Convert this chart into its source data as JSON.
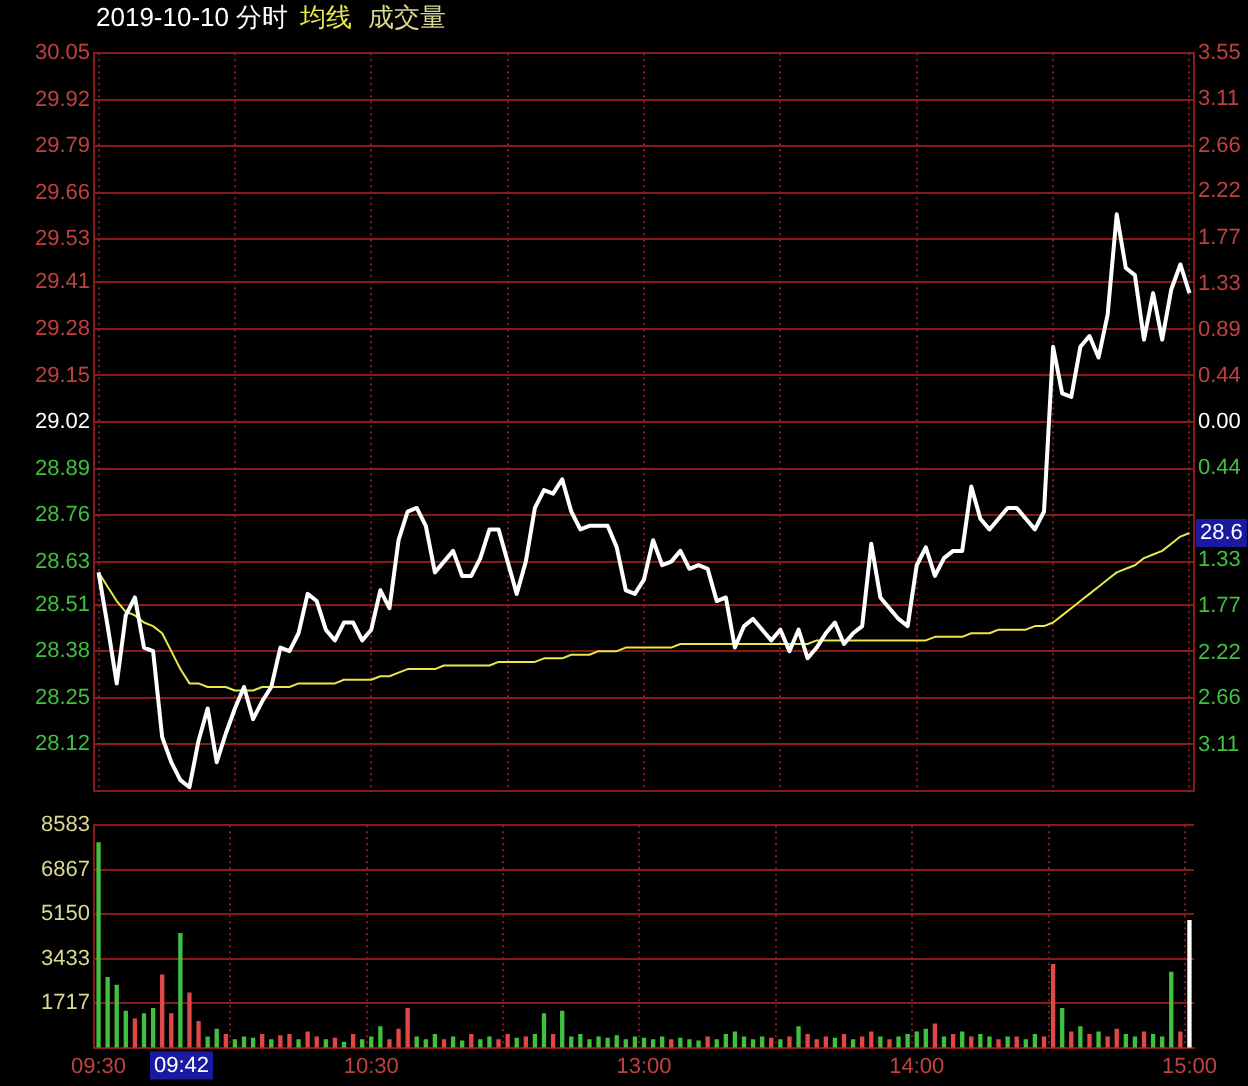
{
  "chart_data": [
    {
      "type": "line",
      "title": "2019-10-10 分时",
      "categories": [
        null,
        null,
        null,
        null,
        null,
        null,
        null,
        null,
        null,
        null,
        null,
        null,
        null,
        null,
        null,
        null,
        null,
        null,
        null,
        null,
        null,
        null,
        null,
        null,
        null,
        null,
        null,
        null,
        null,
        null,
        null,
        null,
        null,
        null,
        null,
        null,
        null,
        null,
        null,
        null,
        null,
        null,
        null,
        null,
        null,
        null,
        null,
        null,
        null,
        null,
        null,
        null,
        null,
        null,
        null,
        null,
        null,
        null,
        null,
        null,
        null,
        null,
        null,
        null,
        null,
        null,
        null,
        null,
        null,
        null,
        null,
        null,
        null,
        null,
        null,
        null,
        null,
        null,
        null,
        null,
        null,
        null,
        null,
        null,
        null,
        null,
        null,
        null,
        null,
        null,
        null,
        null,
        null,
        null,
        null,
        null,
        null,
        null,
        null,
        null,
        null,
        null,
        null,
        null,
        null,
        null,
        null,
        null,
        null,
        null,
        null,
        null,
        null,
        null,
        null,
        null,
        null,
        null,
        null,
        null,
        null
      ],
      "series": [
        {
          "color": "#ffffff",
          "values": [
            28.6,
            28.45,
            28.29,
            28.48,
            28.53,
            28.39,
            28.38,
            28.14,
            28.07,
            28.02,
            28.0,
            28.13,
            28.22,
            28.07,
            28.15,
            28.22,
            28.28,
            28.19,
            28.24,
            28.28,
            28.39,
            28.38,
            28.43,
            28.54,
            28.52,
            28.44,
            28.41,
            28.46,
            28.46,
            28.41,
            28.44,
            28.55,
            28.5,
            28.69,
            28.77,
            28.78,
            28.73,
            28.6,
            28.63,
            28.66,
            28.59,
            28.59,
            28.64,
            28.72,
            28.72,
            28.63,
            28.54,
            28.63,
            28.78,
            28.83,
            28.82,
            28.86,
            28.77,
            28.72,
            28.73,
            28.73,
            28.73,
            28.67,
            28.55,
            28.54,
            28.58,
            28.69,
            28.62,
            28.63,
            28.66,
            28.61,
            28.62,
            28.61,
            28.52,
            28.53,
            28.39,
            28.45,
            28.47,
            28.44,
            28.41,
            28.44,
            28.38,
            28.44,
            28.36,
            28.39,
            28.43,
            28.46,
            28.4,
            28.43,
            28.45,
            28.68,
            28.53,
            28.5,
            28.47,
            28.45,
            28.62,
            28.67,
            28.59,
            28.64,
            28.66,
            28.66,
            28.84,
            28.75,
            28.72,
            28.75,
            28.78,
            28.78,
            28.75,
            28.72,
            28.77,
            29.23,
            29.1,
            29.09,
            29.23,
            29.26,
            29.2,
            29.32,
            29.6,
            29.45,
            29.43,
            29.25,
            29.38,
            29.25,
            29.39,
            29.46,
            29.38
          ]
        },
        {
          "type": "line",
          "name": "均线",
          "color": "#e8e84a",
          "values": [
            28.6,
            28.56,
            28.52,
            28.49,
            28.48,
            28.46,
            28.45,
            28.43,
            28.38,
            28.33,
            28.29,
            28.29,
            28.28,
            28.28,
            28.28,
            28.27,
            28.27,
            28.27,
            28.28,
            28.28,
            28.28,
            28.28,
            28.29,
            28.29,
            28.29,
            28.29,
            28.29,
            28.3,
            28.3,
            28.3,
            28.3,
            28.31,
            28.31,
            28.32,
            28.33,
            28.33,
            28.33,
            28.33,
            28.34,
            28.34,
            28.34,
            28.34,
            28.34,
            28.34,
            28.35,
            28.35,
            28.35,
            28.35,
            28.35,
            28.36,
            28.36,
            28.36,
            28.37,
            28.37,
            28.37,
            28.38,
            28.38,
            28.38,
            28.39,
            28.39,
            28.39,
            28.39,
            28.39,
            28.39,
            28.4,
            28.4,
            28.4,
            28.4,
            28.4,
            28.4,
            28.4,
            28.4,
            28.4,
            28.4,
            28.4,
            28.4,
            28.4,
            28.4,
            28.4,
            28.41,
            28.41,
            28.41,
            28.41,
            28.41,
            28.41,
            28.41,
            28.41,
            28.41,
            28.41,
            28.41,
            28.41,
            28.41,
            28.42,
            28.42,
            28.42,
            28.42,
            28.43,
            28.43,
            28.43,
            28.44,
            28.44,
            28.44,
            28.44,
            28.45,
            28.45,
            28.46,
            28.48,
            28.5,
            28.52,
            28.54,
            28.56,
            28.58,
            28.6,
            28.61,
            28.62,
            28.64,
            28.65,
            28.66,
            28.68,
            28.7,
            28.71
          ]
        }
      ],
      "ylim": [
        27.99,
        30.05
      ],
      "yticks": [
        28.12,
        28.25,
        28.38,
        28.51,
        28.63,
        28.76,
        28.89,
        29.02,
        29.15,
        29.28,
        29.41,
        29.53,
        29.66,
        29.79,
        29.92,
        30.05
      ],
      "y2lim": [
        -3.55,
        3.55
      ],
      "y2ticks": [
        {
          "value": -3.11,
          "label": "3.11"
        },
        {
          "value": -2.66,
          "label": "2.66"
        },
        {
          "value": -2.22,
          "label": "2.22"
        },
        {
          "value": -1.77,
          "label": "1.77"
        },
        {
          "value": -1.33,
          "label": "1.33"
        },
        {
          "value": -0.89,
          "label": null
        },
        {
          "value": -0.44,
          "label": "0.44"
        },
        {
          "value": 0,
          "label": "0.00"
        },
        0.44,
        0.89,
        1.33,
        1.77,
        2.22,
        2.66,
        3.11,
        3.55
      ],
      "annotations": [
        {
          "text": "28.6",
          "y": 28.71
        }
      ],
      "tick_labels": "y",
      "grid": true,
      "legend": "top left",
      "marker": "none",
      "line_style": "solid"
    },
    {
      "type": "bar",
      "categories": [
        "09:30",
        null,
        null,
        null,
        null,
        null,
        null,
        null,
        null,
        null,
        null,
        null,
        null,
        null,
        null,
        null,
        null,
        null,
        null,
        null,
        null,
        null,
        null,
        null,
        null,
        null,
        null,
        null,
        null,
        null,
        "10:30",
        null,
        null,
        null,
        null,
        null,
        null,
        null,
        null,
        null,
        null,
        null,
        null,
        null,
        null,
        null,
        null,
        null,
        null,
        null,
        null,
        null,
        null,
        null,
        null,
        null,
        null,
        null,
        null,
        null,
        "13:00",
        null,
        null,
        null,
        null,
        null,
        null,
        null,
        null,
        null,
        null,
        null,
        null,
        null,
        null,
        null,
        null,
        null,
        null,
        null,
        null,
        null,
        null,
        null,
        null,
        null,
        null,
        null,
        null,
        null,
        "14:00",
        null,
        null,
        null,
        null,
        null,
        null,
        null,
        null,
        null,
        null,
        null,
        null,
        null,
        null,
        null,
        null,
        null,
        null,
        null,
        null,
        null,
        null,
        null,
        null,
        null,
        null,
        null,
        null,
        null,
        "15:00"
      ],
      "series": [
        {
          "name": "成交量",
          "values": [
            7900,
            2700,
            2400,
            1400,
            1100,
            1300,
            1500,
            2800,
            1300,
            4400,
            2100,
            1000,
            400,
            700,
            500,
            300,
            400,
            350,
            500,
            300,
            450,
            500,
            300,
            600,
            400,
            300,
            350,
            200,
            500,
            300,
            400,
            800,
            300,
            700,
            1500,
            400,
            300,
            500,
            300,
            400,
            250,
            500,
            300,
            400,
            300,
            500,
            350,
            400,
            500,
            1300,
            500,
            1400,
            400,
            500,
            300,
            400,
            350,
            450,
            300,
            400,
            350,
            300,
            400,
            300,
            350,
            300,
            250,
            400,
            300,
            500,
            600,
            400,
            300,
            400,
            350,
            300,
            400,
            800,
            500,
            300,
            400,
            350,
            500,
            300,
            400,
            600,
            400,
            300,
            400,
            500,
            600,
            700,
            900,
            400,
            500,
            600,
            400,
            500,
            400,
            300,
            400,
            400,
            300,
            500,
            400,
            3200,
            1500,
            600,
            800,
            500,
            600,
            400,
            700,
            500,
            400,
            600,
            500,
            400,
            2900,
            600,
            4900
          ],
          "colors": [
            "#40c040",
            "#40c040",
            "#40c040",
            "#40c040",
            "#e04848",
            "#40c040",
            "#40c040",
            "#e04848",
            "#e04848",
            "#40c040",
            "#e04848",
            "#e04848",
            "#40c040",
            "#40c040",
            "#e04848",
            "#40c040",
            "#40c040",
            "#40c040",
            "#e04848",
            "#40c040",
            "#e04848",
            "#e04848",
            "#40c040",
            "#e04848",
            "#e04848",
            "#40c040",
            "#e04848",
            "#40c040",
            "#e04848",
            "#40c040",
            "#40c040",
            "#40c040",
            "#e04848",
            "#e04848",
            "#e04848",
            "#40c040",
            "#40c040",
            "#40c040",
            "#e04848",
            "#40c040",
            "#40c040",
            "#e04848",
            "#40c040",
            "#40c040",
            "#e04848",
            "#e04848",
            "#40c040",
            "#e04848",
            "#40c040",
            "#40c040",
            "#e04848",
            "#40c040",
            "#40c040",
            "#40c040",
            "#40c040",
            "#40c040",
            "#40c040",
            "#40c040",
            "#40c040",
            "#40c040",
            "#40c040",
            "#40c040",
            "#40c040",
            "#e04848",
            "#40c040",
            "#40c040",
            "#40c040",
            "#e04848",
            "#40c040",
            "#40c040",
            "#40c040",
            "#40c040",
            "#40c040",
            "#40c040",
            "#e04848",
            "#40c040",
            "#e04848",
            "#40c040",
            "#e04848",
            "#e04848",
            "#e04848",
            "#40c040",
            "#e04848",
            "#40c040",
            "#e04848",
            "#e04848",
            "#40c040",
            "#e04848",
            "#40c040",
            "#40c040",
            "#40c040",
            "#40c040",
            "#e04848",
            "#40c040",
            "#e04848",
            "#40c040",
            "#e04848",
            "#40c040",
            "#40c040",
            "#e04848",
            "#40c040",
            "#e04848",
            "#40c040",
            "#40c040",
            "#e04848",
            "#e04848",
            "#40c040",
            "#e04848",
            "#40c040",
            "#e04848",
            "#40c040",
            "#e04848",
            "#e04848",
            "#40c040",
            "#40c040",
            "#e04848",
            "#40c040",
            "#40c040",
            "#40c040",
            "#e04848",
            "#ffffff"
          ]
        }
      ],
      "ylim": [
        0,
        8583
      ],
      "yticks": [
        1717,
        3433,
        5150,
        6867,
        8583
      ],
      "annotations": [
        "09:42"
      ],
      "grid": true,
      "legend": "top left"
    }
  ]
}
